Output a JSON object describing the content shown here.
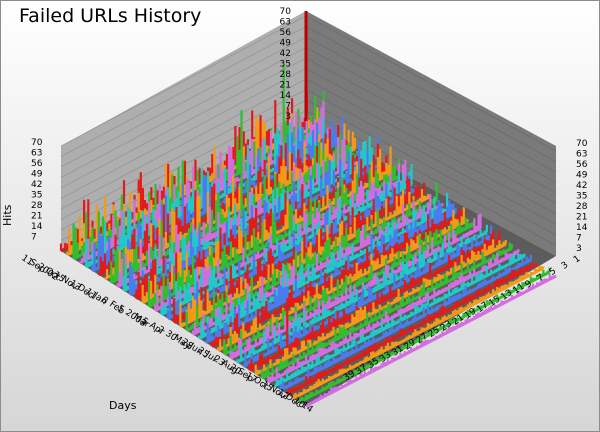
{
  "chart_data": {
    "type": "bar",
    "title": "Failed URLs History",
    "xlabel": "Days",
    "ylabel": "Hits",
    "zlim": [
      0,
      70
    ],
    "z_ticks": [
      "7",
      "14",
      "21",
      "28",
      "35",
      "42",
      "49",
      "56",
      "63",
      "70"
    ],
    "back_axis_ticks": [
      "3",
      "7",
      "14",
      "21",
      "28",
      "35",
      "42",
      "49",
      "56",
      "63",
      "70"
    ],
    "right_axis_ticks": [
      "3",
      "7",
      "14",
      "21",
      "28",
      "35",
      "42",
      "49",
      "56",
      "63",
      "70"
    ],
    "date_axis_labels": [
      "11",
      "Sep",
      "2002",
      "Oct",
      "15",
      "Nov",
      "13",
      "Dec",
      "11",
      "Jan",
      "8",
      "Feb",
      "5",
      "2003",
      "Mar",
      "5",
      "Apr",
      "2",
      "30",
      "May",
      "28",
      "Jun",
      "25",
      "Jul",
      "23",
      "Aug",
      "20",
      "Sep",
      "17",
      "Oct",
      "15",
      "Nov",
      "12",
      "Dec",
      "10",
      "14"
    ],
    "series_axis_labels": [
      "1",
      "3",
      "5",
      "7",
      "9",
      "11",
      "13",
      "15",
      "17",
      "19",
      "21",
      "23",
      "25",
      "27",
      "29",
      "31",
      "33",
      "35",
      "37",
      "39"
    ],
    "series_count": 40,
    "series_colors": [
      "#e41a1a",
      "#f59a16",
      "#2fbf2f",
      "#d26ee0",
      "#21c9c9",
      "#4a7cf0"
    ],
    "day_count": 120,
    "notable_peaks": [
      {
        "series": 8,
        "day": 62,
        "value": 70
      },
      {
        "series": 30,
        "day": 18,
        "value": 28
      },
      {
        "series": 22,
        "day": 40,
        "value": 21
      },
      {
        "series": 2,
        "day": 100,
        "value": 56
      }
    ],
    "grid": true
  }
}
